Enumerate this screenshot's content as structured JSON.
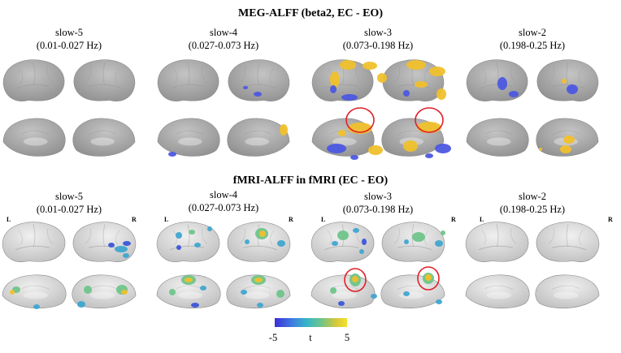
{
  "meg": {
    "title": "MEG-ALFF (beta2, EC - EO)",
    "bands": [
      {
        "name": "slow-5",
        "range": "(0.01-0.027 Hz)"
      },
      {
        "name": "slow-4",
        "range": "(0.027-0.073 Hz)"
      },
      {
        "name": "slow-3",
        "range": "(0.073-0.198 Hz)"
      },
      {
        "name": "slow-2",
        "range": "(0.198-0.25 Hz)"
      }
    ]
  },
  "fmri": {
    "title": "fMRI-ALFF in fMRI (EC - EO)",
    "bands": [
      {
        "name": "slow-5",
        "range": "(0.01-0.027 Hz)"
      },
      {
        "name": "slow-4",
        "range": "(0.027-0.073 Hz)"
      },
      {
        "name": "slow-3",
        "range": "(0.073-0.198 Hz)"
      },
      {
        "name": "slow-2",
        "range": "(0.198-0.25 Hz)"
      }
    ],
    "hemisphere_left": "L",
    "hemisphere_right": "R"
  },
  "colorbar": {
    "min_label": "-5",
    "max_label": "5",
    "var_label": "t",
    "colors": [
      "#3b2fd8",
      "#3f7fe0",
      "#36b7c6",
      "#73c487",
      "#d8c83a",
      "#f2e22a"
    ]
  },
  "colors": {
    "brain_meg": "#a9a9a9",
    "brain_fmri": "#d8d8d8",
    "meg_pos": "#f0c02c",
    "meg_neg": "#4c58e0",
    "highlight_circle": "#e0202a"
  }
}
